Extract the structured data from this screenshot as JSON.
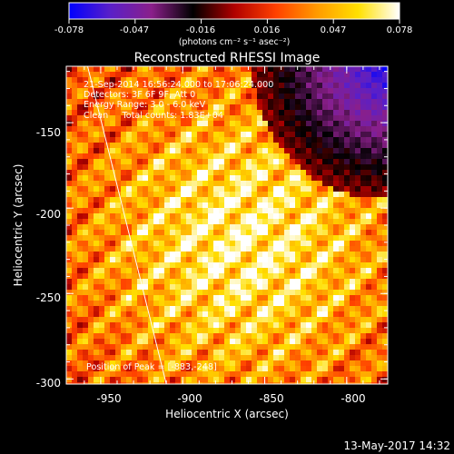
{
  "colorbar": {
    "ticks": [
      "-0.078",
      "-0.047",
      "-0.016",
      "0.016",
      "0.047",
      "0.078"
    ],
    "unit_label": "(photons cm⁻² s⁻¹ asec⁻²)",
    "colors": [
      "#0000ff",
      "#5a1fc8",
      "#8a1f8a",
      "#000000",
      "#b00000",
      "#ff4000",
      "#ff9a00",
      "#ffe000",
      "#ffffff"
    ]
  },
  "annotations": {
    "time": "21-Sep-2014 16:56:24.000 to 17:06:24.000",
    "detectors": "Detectors: 3F 6F 9F, Att 0",
    "energy": "Energy Range: 3.0 - 6.0 keV",
    "clean": "Clean     Total counts: 1.83E+04",
    "peak": "Position of Peak = [-883,-248]"
  },
  "footer_date": "13-May-2017 14:32",
  "chart_data": {
    "type": "heatmap",
    "title": "Reconstructed RHESSI Image",
    "xlabel": "Heliocentric X (arcsec)",
    "ylabel": "Heliocentric Y (arcsec)",
    "xlim": [
      -971,
      -775
    ],
    "ylim": [
      -303,
      -117
    ],
    "x_ticks": [
      -950,
      -900,
      -850,
      -800
    ],
    "y_ticks": [
      -300,
      -250,
      -200,
      -150
    ],
    "x_tick_labels": [
      "-950",
      "-900",
      "-850",
      "-800"
    ],
    "y_tick_labels": [
      "-300",
      "-250",
      "-200",
      "-150"
    ],
    "value_range": [
      -0.078,
      0.078
    ],
    "peak_position": [
      -883,
      -248
    ],
    "limb_line": [
      [
        -958,
        -117
      ],
      [
        -910,
        -303
      ]
    ]
  }
}
